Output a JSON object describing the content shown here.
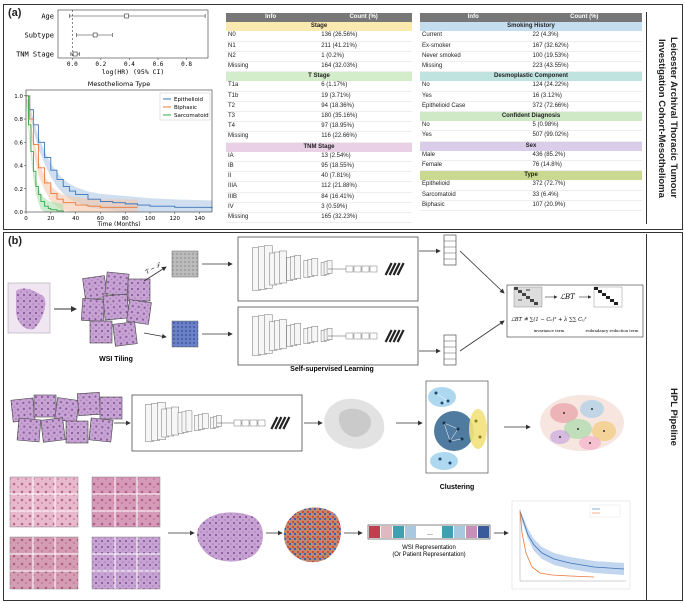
{
  "panel_a": {
    "label": "(a)",
    "side_title": [
      "Leicester Archival Thoracic Tumour",
      "Investigation Cohort-Mesothelioma"
    ]
  },
  "forest_plot": {
    "rows": [
      {
        "label": "Age",
        "hr": 0.38,
        "ci": [
          -0.02,
          0.93
        ]
      },
      {
        "label": "Subtype",
        "hr": 0.16,
        "ci": [
          0.03,
          0.28
        ]
      },
      {
        "label": "TNM Stage",
        "hr": 0.02,
        "ci": [
          -0.01,
          0.05
        ]
      }
    ],
    "ticks": [
      "0.0",
      "0.2",
      "0.4",
      "0.6",
      "0.8"
    ],
    "xlabel": "log(HR) (95% CI)",
    "xlim": [
      -0.1,
      0.95
    ]
  },
  "chart_data": {
    "type": "line",
    "title": "Mesothelioma Type",
    "xlabel": "Time (Months)",
    "ylabel": "",
    "xlim": [
      0,
      150
    ],
    "ylim": [
      0,
      1.05
    ],
    "xticks": [
      "0",
      "20",
      "40",
      "60",
      "80",
      "100",
      "120",
      "140"
    ],
    "yticks": [
      "0.0",
      "0.2",
      "0.4",
      "0.6",
      "0.8",
      "1.0"
    ],
    "legend_position": "top-right",
    "series": [
      {
        "name": "Epithelioid",
        "color": "#3a74b8",
        "band": "#aac4e4",
        "x": [
          0,
          3,
          6,
          10,
          15,
          20,
          25,
          30,
          35,
          40,
          50,
          60,
          70,
          80,
          90,
          100,
          120,
          150
        ],
        "y": [
          1.0,
          0.88,
          0.75,
          0.6,
          0.47,
          0.36,
          0.28,
          0.22,
          0.18,
          0.15,
          0.11,
          0.09,
          0.08,
          0.07,
          0.06,
          0.05,
          0.04,
          0.03
        ]
      },
      {
        "name": "Biphasic",
        "color": "#e8793a",
        "band": "#f4c3a4",
        "x": [
          0,
          3,
          6,
          10,
          15,
          20,
          25,
          30,
          40,
          50,
          60,
          80,
          90
        ],
        "y": [
          1.0,
          0.8,
          0.58,
          0.38,
          0.25,
          0.16,
          0.11,
          0.08,
          0.06,
          0.05,
          0.04,
          0.04,
          0.04
        ]
      },
      {
        "name": "Sarcomatoid",
        "color": "#3aa84a",
        "band": "#a6dca8",
        "x": [
          0,
          2,
          4,
          6,
          8,
          10,
          12,
          15,
          18,
          20,
          25,
          30
        ],
        "y": [
          1.0,
          0.75,
          0.52,
          0.35,
          0.22,
          0.15,
          0.09,
          0.05,
          0.03,
          0.02,
          0.01,
          0.0
        ]
      }
    ]
  },
  "table_left": {
    "header": [
      "Info",
      "Count (%)"
    ],
    "sections": [
      {
        "title": "Stage",
        "color": "#fbeab0",
        "rows": [
          [
            "N0",
            "136 (26.56%)"
          ],
          [
            "N1",
            "211 (41.21%)"
          ],
          [
            "N2",
            "1 (0.2%)"
          ],
          [
            "Missing",
            "164 (32.03%)"
          ]
        ]
      },
      {
        "title": "T Stage",
        "color": "#d3ecc9",
        "rows": [
          [
            "T1a",
            "6 (1.17%)"
          ],
          [
            "T1b",
            "19 (3.71%)"
          ],
          [
            "T2",
            "94 (18.36%)"
          ],
          [
            "T3",
            "180 (35.16%)"
          ],
          [
            "T4",
            "97 (18.95%)"
          ],
          [
            "Missing",
            "116 (22.66%)"
          ]
        ]
      },
      {
        "title": "TNM Stage",
        "color": "#ead0e6",
        "rows": [
          [
            "IA",
            "13 (2.54%)"
          ],
          [
            "IB",
            "95 (18.55%)"
          ],
          [
            "II",
            "40 (7.81%)"
          ],
          [
            "IIIA",
            "112 (21.88%)"
          ],
          [
            "IIIB",
            "84 (16.41%)"
          ],
          [
            "IV",
            "3 (0.59%)"
          ],
          [
            "Missing",
            "165 (32.23%)"
          ]
        ]
      }
    ]
  },
  "table_right": {
    "header": [
      "Info",
      "Count (%)"
    ],
    "sections": [
      {
        "title": "Smoking History",
        "color": "#c4def0",
        "rows": [
          [
            "Current",
            "22 (4.3%)"
          ],
          [
            "Ex-smoker",
            "167 (32.62%)"
          ],
          [
            "Never smoked",
            "100 (19.53%)"
          ],
          [
            "Missing",
            "223 (43.55%)"
          ]
        ]
      },
      {
        "title": "Desmoplastic Component",
        "color": "#bfe3df",
        "rows": [
          [
            "No",
            "124 (24.22%)"
          ],
          [
            "Yes",
            "16 (3.12%)"
          ],
          [
            "Epithelioid Case",
            "372 (72.66%)"
          ]
        ]
      },
      {
        "title": "Confident Diagnosis",
        "color": "#cfe8c6",
        "rows": [
          [
            "No",
            "5 (0.98%)"
          ],
          [
            "Yes",
            "507 (99.02%)"
          ]
        ]
      },
      {
        "title": "Sex",
        "color": "#d9cdea",
        "rows": [
          [
            "Male",
            "436 (85.2%)"
          ],
          [
            "Female",
            "76 (14.8%)"
          ]
        ]
      },
      {
        "title": "Type",
        "color": "#c9d98f",
        "rows": [
          [
            "Epithelioid",
            "372 (72.7%)"
          ],
          [
            "Sarcomatoid",
            "33 (6.4%)"
          ],
          [
            "Biphasic",
            "107 (20.9%)"
          ]
        ]
      }
    ]
  },
  "panel_b": {
    "label": "(b)",
    "side_title": "HPL Pipeline",
    "wsi_tiling": "WSI Tiling",
    "ssl": "Self-supervised Learning",
    "clustering": "Clustering",
    "transform": "T ~ 𝒯",
    "loss_symbol": "ℒBT",
    "loss_formula": "ℒBT ≜ ∑(1 − Cᵢᵢ)² + λ ∑∑ Cᵢⱼ²",
    "invariance_term": "invariance term",
    "redundancy_term": "redundancy reduction term",
    "wsi_repr": [
      "WSI Representation",
      "(Or Patient Representation)"
    ],
    "ellipsis": "..."
  },
  "colors": {
    "tissue": "#c9a6d6",
    "tissue_dark": "#7a4a8c",
    "ihc_blue": "#5068b8",
    "cluster_blue": "#3d6d96",
    "cluster_yellow": "#f2e27a",
    "cluster_light": "#8cc8e8"
  }
}
